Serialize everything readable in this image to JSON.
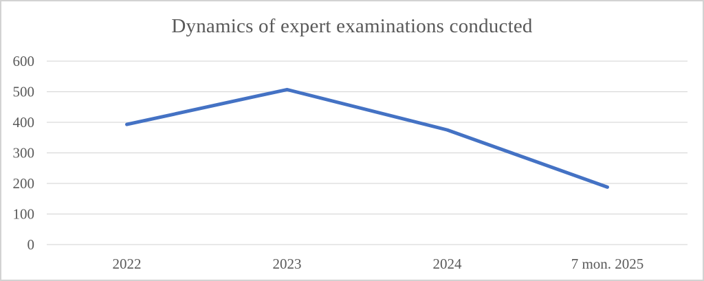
{
  "window": {
    "background": "#ffffff",
    "border_color": "#d2d2d2"
  },
  "chart_data": {
    "type": "line",
    "title": "Dynamics of expert examinations conducted",
    "categories": [
      "2022",
      "2023",
      "2024",
      "7 mon. 2025"
    ],
    "series": [
      {
        "values": [
          393,
          507,
          375,
          188
        ]
      }
    ],
    "xlabel": "",
    "ylabel": "",
    "ylim": [
      0,
      600
    ],
    "yticks": [
      0,
      100,
      200,
      300,
      400,
      500,
      600
    ],
    "grid": true,
    "legend": "none",
    "markers": "none",
    "colors": {
      "line": "#4472C4",
      "gridline": "#D9D9D9",
      "tick_text": "#595959",
      "title_text": "#595959"
    }
  }
}
